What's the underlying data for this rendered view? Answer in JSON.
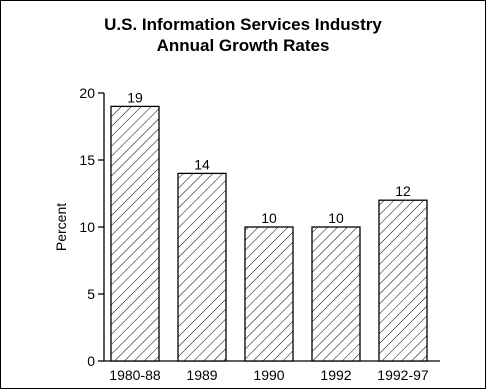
{
  "chart_data": {
    "type": "bar",
    "title": "U.S. Information Services Industry",
    "subtitle": "Annual Growth Rates",
    "ylabel": "Percent",
    "xlabel": "",
    "categories": [
      "1980-88",
      "1989",
      "1990",
      "1992",
      "1992-97"
    ],
    "values": [
      19,
      14,
      10,
      10,
      12
    ],
    "ylim": [
      0,
      20
    ],
    "yticks": [
      0,
      5,
      10,
      15,
      20
    ],
    "grid": false,
    "bar_fill": "diagonal-hatch",
    "colors": {
      "bar_stroke": "#000000",
      "hatch": "#000000",
      "background": "#ffffff"
    }
  }
}
